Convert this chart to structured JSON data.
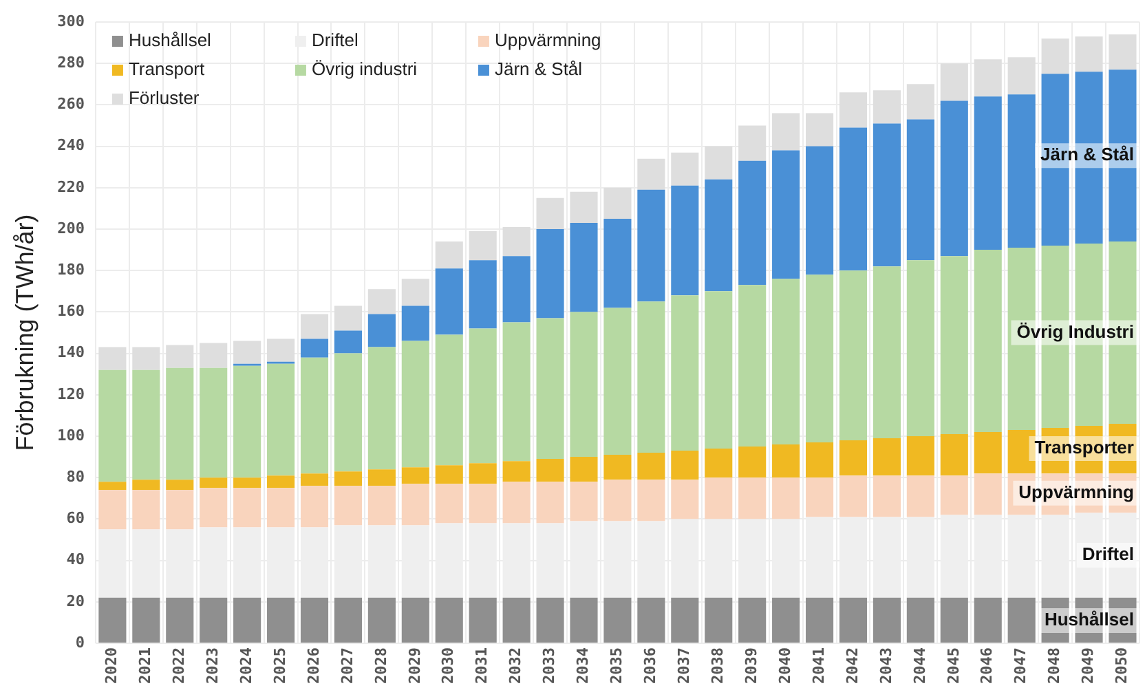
{
  "chart_data": {
    "type": "bar",
    "stacked": true,
    "ylabel": "Förbrukning (TWh/år)",
    "categories": [
      "2020",
      "2021",
      "2022",
      "2023",
      "2024",
      "2025",
      "2026",
      "2027",
      "2028",
      "2029",
      "2030",
      "2031",
      "2032",
      "2033",
      "2034",
      "2035",
      "2036",
      "2037",
      "2038",
      "2039",
      "2040",
      "2041",
      "2042",
      "2043",
      "2044",
      "2045",
      "2046",
      "2047",
      "2048",
      "2049",
      "2050"
    ],
    "series": [
      {
        "name": "Hushållsel",
        "color": "#8f8f8f",
        "values": [
          22,
          22,
          22,
          22,
          22,
          22,
          22,
          22,
          22,
          22,
          22,
          22,
          22,
          22,
          22,
          22,
          22,
          22,
          22,
          22,
          22,
          22,
          22,
          22,
          22,
          22,
          22,
          22,
          22,
          22,
          22
        ]
      },
      {
        "name": "Driftel",
        "color": "#efefef",
        "values": [
          33,
          33,
          33,
          34,
          34,
          34,
          34,
          35,
          35,
          35,
          36,
          36,
          36,
          36,
          37,
          37,
          37,
          38,
          38,
          38,
          38,
          39,
          39,
          39,
          39,
          40,
          40,
          40,
          40,
          41,
          41
        ]
      },
      {
        "name": "Uppvärmning",
        "color": "#f9d4bd",
        "values": [
          19,
          19,
          19,
          19,
          19,
          19,
          20,
          19,
          19,
          20,
          19,
          19,
          20,
          20,
          19,
          20,
          20,
          19,
          20,
          20,
          20,
          19,
          20,
          20,
          20,
          19,
          20,
          20,
          20,
          19,
          19
        ]
      },
      {
        "name": "Transport",
        "color": "#f0b922",
        "values": [
          4,
          5,
          5,
          5,
          5,
          6,
          6,
          7,
          8,
          8,
          9,
          10,
          10,
          11,
          12,
          12,
          13,
          14,
          14,
          15,
          16,
          17,
          17,
          18,
          19,
          20,
          20,
          21,
          22,
          23,
          24
        ]
      },
      {
        "name": "Övrig industri",
        "color": "#b6d9a2",
        "values": [
          54,
          53,
          54,
          53,
          54,
          54,
          56,
          57,
          59,
          61,
          63,
          65,
          67,
          68,
          70,
          71,
          73,
          75,
          76,
          78,
          80,
          81,
          82,
          83,
          85,
          86,
          88,
          88,
          88,
          88,
          88
        ]
      },
      {
        "name": "Järn & Stål",
        "color": "#4a90d6",
        "values": [
          0,
          0,
          0,
          0,
          1,
          1,
          9,
          11,
          16,
          17,
          32,
          33,
          32,
          43,
          43,
          43,
          54,
          53,
          54,
          60,
          62,
          62,
          69,
          69,
          68,
          75,
          74,
          74,
          83,
          83,
          83
        ]
      },
      {
        "name": "Förluster",
        "color": "#dedede",
        "values": [
          11,
          11,
          11,
          12,
          11,
          11,
          12,
          12,
          12,
          13,
          13,
          14,
          14,
          15,
          15,
          15,
          15,
          16,
          16,
          17,
          18,
          16,
          17,
          16,
          17,
          18,
          18,
          18,
          17,
          17,
          17
        ]
      }
    ],
    "annotations": [
      "Järn & Stål",
      "Övrig Industri",
      "Transporter",
      "Uppvärmning",
      "Driftel",
      "Hushållsel"
    ],
    "ylim": [
      0,
      300
    ],
    "yticks": [
      0,
      20,
      40,
      60,
      80,
      100,
      120,
      140,
      160,
      180,
      200,
      220,
      240,
      260,
      280,
      300
    ],
    "grid": true,
    "legend": "top left"
  }
}
